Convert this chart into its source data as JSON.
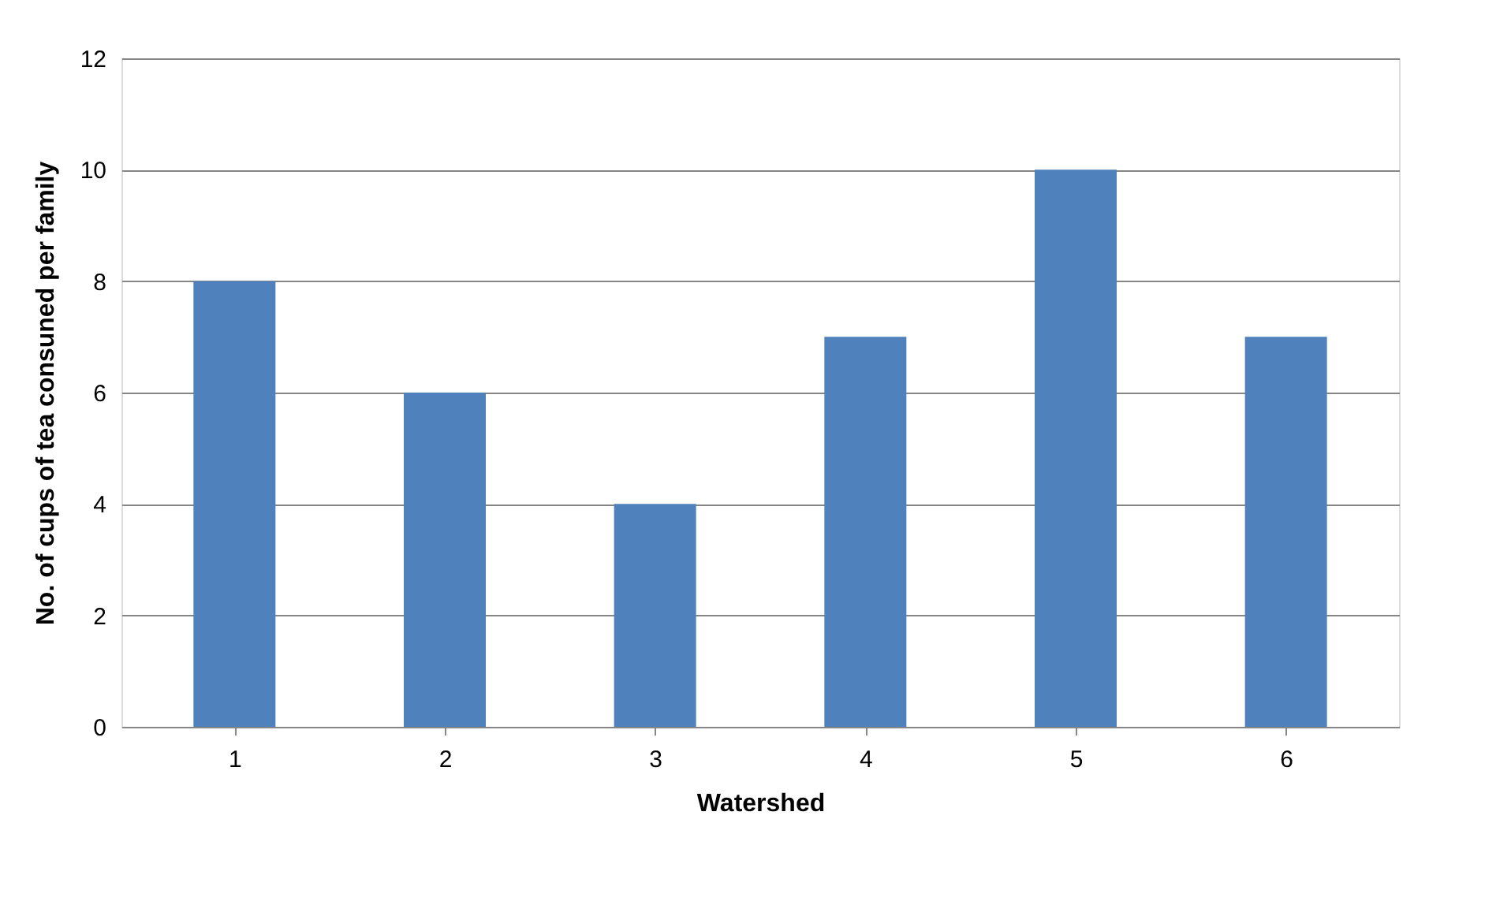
{
  "chart_data": {
    "type": "bar",
    "xlabel": "Watershed",
    "ylabel": "No. of cups of tea consuned per family",
    "categories": [
      "1",
      "2",
      "3",
      "4",
      "5",
      "6"
    ],
    "values": [
      8,
      6,
      4,
      7,
      10,
      7
    ],
    "color": "#4f81bd",
    "ylim": [
      0,
      12
    ],
    "yticks": [
      0,
      2,
      4,
      6,
      8,
      10,
      12
    ],
    "grid": "y"
  }
}
